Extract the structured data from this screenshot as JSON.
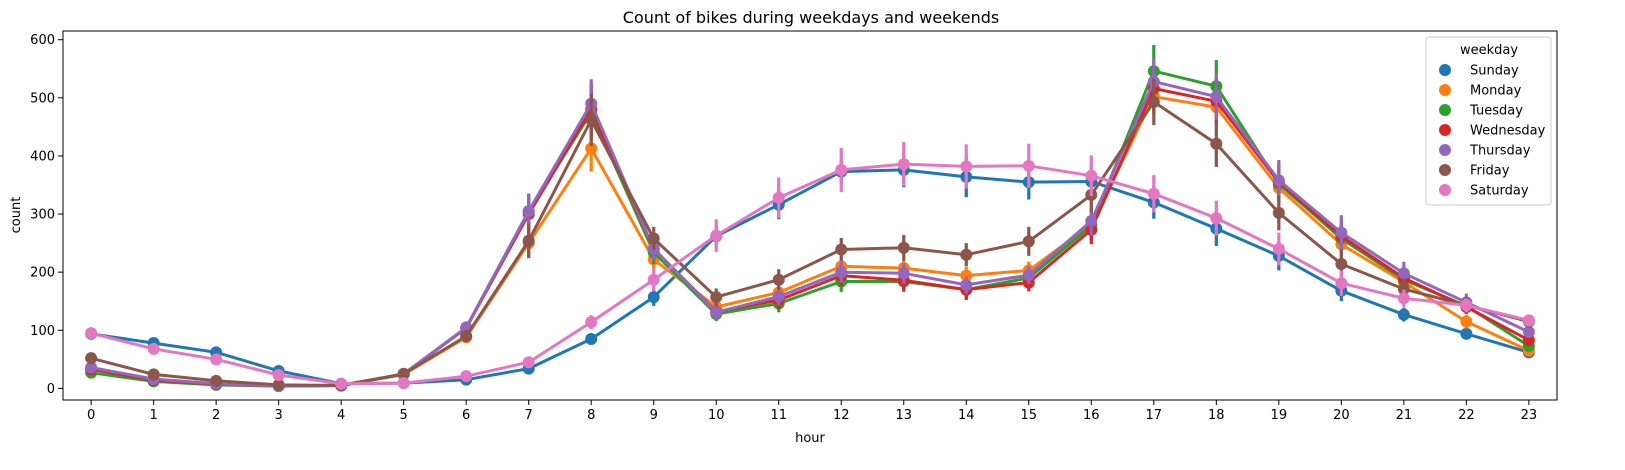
{
  "chart_data": {
    "type": "line",
    "title": "Count of bikes during weekdays and weekends",
    "xlabel": "hour",
    "ylabel": "count",
    "x": [
      0,
      1,
      2,
      3,
      4,
      5,
      6,
      7,
      8,
      9,
      10,
      11,
      12,
      13,
      14,
      15,
      16,
      17,
      18,
      19,
      20,
      21,
      22,
      23
    ],
    "xlim": [
      -0.45,
      23.45
    ],
    "ylim": [
      -20,
      615
    ],
    "yticks": [
      0,
      100,
      200,
      300,
      400,
      500,
      600
    ],
    "grid": false,
    "legend": {
      "title": "weekday",
      "placement": "top-right"
    },
    "series": [
      {
        "name": "Sunday",
        "color": "#1f77b4",
        "values": [
          94,
          78,
          62,
          30,
          8,
          9,
          15,
          34,
          85,
          157,
          262,
          316,
          373,
          376,
          364,
          355,
          356,
          320,
          275,
          228,
          168,
          127,
          94,
          62
        ],
        "err": [
          8,
          6,
          6,
          5,
          2,
          2,
          3,
          5,
          8,
          15,
          18,
          25,
          22,
          30,
          35,
          30,
          30,
          28,
          30,
          25,
          18,
          12,
          8,
          6
        ]
      },
      {
        "name": "Monday",
        "color": "#ff7f0e",
        "values": [
          34,
          16,
          8,
          4,
          6,
          24,
          88,
          250,
          413,
          222,
          140,
          165,
          210,
          207,
          194,
          203,
          282,
          502,
          484,
          345,
          248,
          183,
          115,
          65
        ],
        "err": [
          6,
          3,
          2,
          2,
          2,
          4,
          8,
          25,
          40,
          20,
          12,
          15,
          15,
          15,
          15,
          15,
          25,
          30,
          30,
          25,
          20,
          15,
          12,
          8
        ]
      },
      {
        "name": "Tuesday",
        "color": "#2ca02c",
        "values": [
          27,
          12,
          6,
          4,
          5,
          24,
          104,
          305,
          475,
          234,
          128,
          146,
          184,
          184,
          170,
          190,
          280,
          546,
          520,
          352,
          258,
          187,
          142,
          73
        ],
        "err": [
          5,
          3,
          2,
          2,
          2,
          4,
          10,
          30,
          45,
          20,
          12,
          15,
          18,
          18,
          15,
          15,
          25,
          45,
          45,
          30,
          25,
          18,
          12,
          8
        ]
      },
      {
        "name": "Wednesday",
        "color": "#d62728",
        "values": [
          33,
          14,
          7,
          4,
          5,
          25,
          104,
          300,
          480,
          240,
          132,
          152,
          194,
          186,
          170,
          182,
          273,
          516,
          494,
          355,
          262,
          190,
          140,
          83
        ],
        "err": [
          5,
          3,
          2,
          2,
          2,
          4,
          10,
          30,
          45,
          20,
          12,
          15,
          18,
          18,
          18,
          15,
          25,
          40,
          40,
          30,
          25,
          18,
          12,
          8
        ]
      },
      {
        "name": "Thursday",
        "color": "#9467bd",
        "values": [
          36,
          16,
          8,
          4,
          5,
          25,
          105,
          305,
          490,
          240,
          131,
          158,
          200,
          198,
          178,
          195,
          288,
          528,
          502,
          358,
          268,
          198,
          148,
          97
        ],
        "err": [
          5,
          3,
          2,
          2,
          2,
          4,
          10,
          30,
          42,
          20,
          12,
          15,
          18,
          18,
          15,
          15,
          25,
          40,
          40,
          35,
          30,
          20,
          15,
          8
        ]
      },
      {
        "name": "Friday",
        "color": "#8c564b",
        "values": [
          52,
          24,
          13,
          6,
          5,
          25,
          90,
          254,
          462,
          258,
          157,
          187,
          239,
          242,
          230,
          253,
          333,
          493,
          421,
          302,
          214,
          171,
          143,
          115
        ],
        "err": [
          6,
          4,
          3,
          2,
          2,
          4,
          10,
          30,
          45,
          20,
          15,
          18,
          20,
          22,
          20,
          25,
          30,
          40,
          40,
          30,
          25,
          18,
          15,
          10
        ]
      },
      {
        "name": "Saturday",
        "color": "#e377c2",
        "values": [
          95,
          68,
          50,
          23,
          8,
          9,
          21,
          45,
          114,
          187,
          263,
          328,
          376,
          386,
          382,
          383,
          366,
          335,
          293,
          240,
          181,
          155,
          143,
          117
        ],
        "err": [
          10,
          6,
          5,
          4,
          2,
          2,
          3,
          5,
          12,
          20,
          28,
          35,
          38,
          38,
          38,
          38,
          35,
          32,
          30,
          28,
          22,
          15,
          12,
          10
        ]
      }
    ]
  }
}
